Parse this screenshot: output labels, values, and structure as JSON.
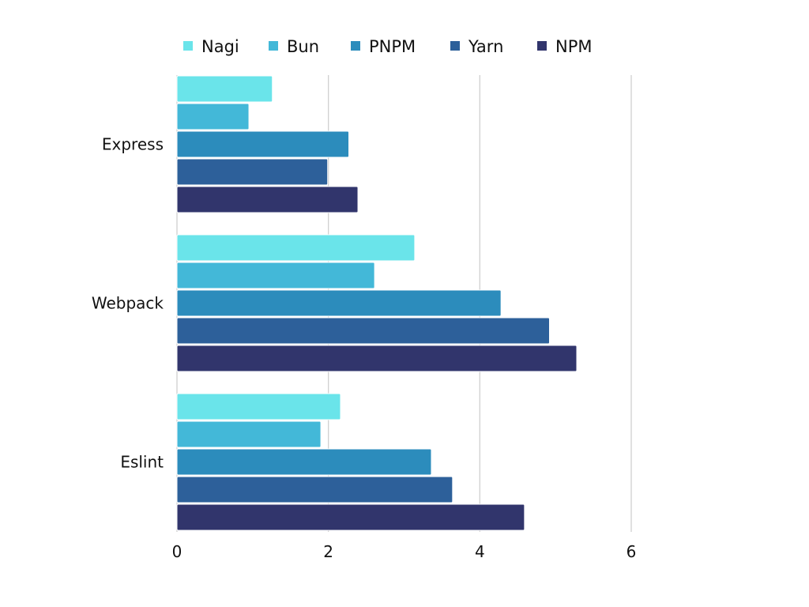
{
  "chart_data": {
    "type": "bar",
    "orientation": "horizontal",
    "categories": [
      "Express",
      "Webpack",
      "Eslint"
    ],
    "series": [
      {
        "name": "Nagi",
        "color": "#6ae4ea",
        "values": [
          1.26,
          3.14,
          2.16
        ]
      },
      {
        "name": "Bun",
        "color": "#43b8d8",
        "values": [
          0.95,
          2.61,
          1.9
        ]
      },
      {
        "name": "PNPM",
        "color": "#2c8cbc",
        "values": [
          2.27,
          4.28,
          3.36
        ]
      },
      {
        "name": "Yarn",
        "color": "#2d609a",
        "values": [
          1.99,
          4.92,
          3.64
        ]
      },
      {
        "name": "NPM",
        "color": "#31356c",
        "values": [
          2.39,
          5.28,
          4.59
        ]
      }
    ],
    "xlim": [
      0,
      6
    ],
    "xticks": [
      0,
      2,
      4,
      6
    ],
    "grid": true,
    "legend_position": "top"
  }
}
